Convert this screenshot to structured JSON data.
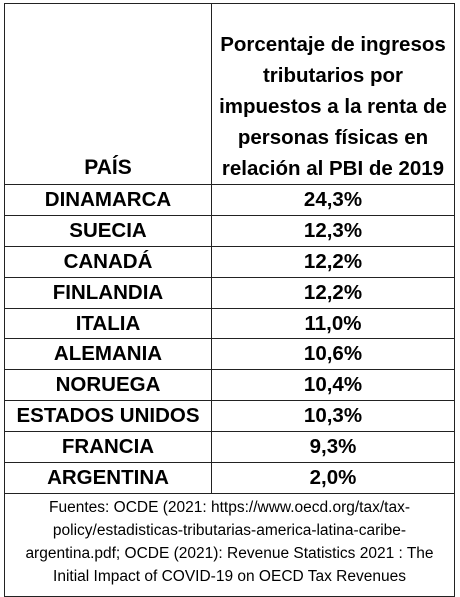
{
  "header": {
    "country": "PAÍS",
    "value_lines": [
      "Porcentaje de ingresos",
      "tributarios por",
      "impuestos a la renta de",
      "personas físicas en",
      "relación al PBI de 2019"
    ]
  },
  "rows": [
    {
      "country": "DINAMARCA",
      "value": "24,3%"
    },
    {
      "country": "SUECIA",
      "value": "12,3%"
    },
    {
      "country": "CANADÁ",
      "value": "12,2%"
    },
    {
      "country": "FINLANDIA",
      "value": "12,2%"
    },
    {
      "country": "ITALIA",
      "value": "11,0%"
    },
    {
      "country": "ALEMANIA",
      "value": "10,6%"
    },
    {
      "country": "NORUEGA",
      "value": "10,4%"
    },
    {
      "country": "ESTADOS UNIDOS",
      "value": "10,3%"
    },
    {
      "country": "FRANCIA",
      "value": "9,3%"
    },
    {
      "country": "ARGENTINA",
      "value": "2,0%"
    }
  ],
  "footer": {
    "lines": [
      "Fuentes: OCDE (2021: https://www.oecd.org/tax/tax-",
      "policy/estadisticas-tributarias-america-latina-caribe-",
      "argentina.pdf; OCDE (2021): Revenue Statistics 2021 : The",
      "Initial Impact of COVID-19 on OECD Tax Revenues"
    ]
  }
}
